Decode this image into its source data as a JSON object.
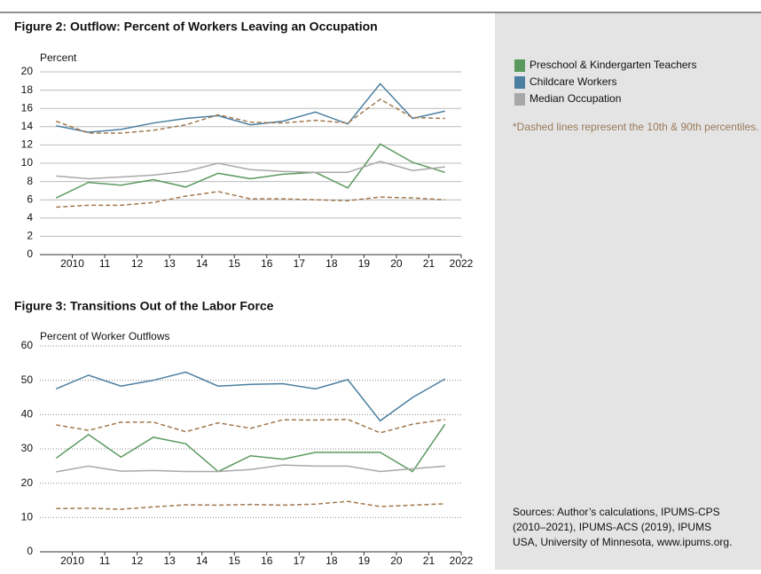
{
  "chart_data": [
    {
      "type": "line",
      "title": "Figure 2: Outflow: Percent of Workers Leaving an Occupation",
      "y_label": "Percent",
      "x": [
        2009.5,
        2010.5,
        2011.5,
        2012.5,
        2013.5,
        2014.5,
        2015.5,
        2016.5,
        2017.5,
        2018.5,
        2019.5,
        2020.5,
        2021.5
      ],
      "xlim": [
        2009,
        2022
      ],
      "xticks": [
        2010,
        {
          "value": 2011,
          "label": "11"
        },
        {
          "value": 2012,
          "label": "12"
        },
        {
          "value": 2013,
          "label": "13"
        },
        {
          "value": 2014,
          "label": "14"
        },
        {
          "value": 2015,
          "label": "15"
        },
        {
          "value": 2016,
          "label": "16"
        },
        {
          "value": 2017,
          "label": "17"
        },
        {
          "value": 2018,
          "label": "18"
        },
        {
          "value": 2019,
          "label": "19"
        },
        {
          "value": 2020,
          "label": "20"
        },
        {
          "value": 2021,
          "label": "21"
        },
        2022
      ],
      "ylim": [
        0,
        20
      ],
      "yticks": [
        0,
        2,
        4,
        6,
        8,
        10,
        12,
        14,
        16,
        18,
        20
      ],
      "grid": true,
      "series": [
        {
          "name": "Preschool & Kindergarten Teachers",
          "color": "#5b9a5e",
          "values": [
            6.2,
            7.9,
            7.6,
            8.2,
            7.4,
            8.9,
            8.3,
            8.8,
            9.0,
            7.3,
            12.1,
            10.1,
            9.0
          ]
        },
        {
          "name": "Childcare Workers",
          "color": "#4b7fa0",
          "values": [
            14.1,
            13.4,
            13.7,
            14.4,
            14.9,
            15.2,
            14.2,
            14.6,
            15.6,
            14.3,
            18.7,
            14.9,
            15.7
          ]
        },
        {
          "name": "Median Occupation",
          "color": "#a8a8a8",
          "values": [
            8.6,
            8.3,
            8.5,
            8.7,
            9.1,
            10.0,
            9.3,
            9.1,
            9.0,
            9.0,
            10.2,
            9.2,
            9.6
          ]
        },
        {
          "color": "#a0784f",
          "dashed": true,
          "values": [
            14.6,
            13.3,
            13.3,
            13.6,
            14.2,
            15.3,
            14.5,
            14.4,
            14.7,
            14.4,
            17.0,
            15.0,
            14.9
          ]
        },
        {
          "color": "#a0784f",
          "dashed": true,
          "values": [
            5.2,
            5.4,
            5.4,
            5.7,
            6.4,
            6.9,
            6.1,
            6.1,
            6.0,
            5.9,
            6.3,
            6.2,
            6.0
          ]
        }
      ]
    },
    {
      "type": "line",
      "title": "Figure 3: Transitions Out of the Labor Force",
      "y_label": "Percent of Worker Outflows",
      "x": [
        2009.5,
        2010.5,
        2011.5,
        2012.5,
        2013.5,
        2014.5,
        2015.5,
        2016.5,
        2017.5,
        2018.5,
        2019.5,
        2020.5,
        2021.5
      ],
      "xlim": [
        2009,
        2022
      ],
      "xticks": [
        2010,
        {
          "value": 2011,
          "label": "11"
        },
        {
          "value": 2012,
          "label": "12"
        },
        {
          "value": 2013,
          "label": "13"
        },
        {
          "value": 2014,
          "label": "14"
        },
        {
          "value": 2015,
          "label": "15"
        },
        {
          "value": 2016,
          "label": "16"
        },
        {
          "value": 2017,
          "label": "17"
        },
        {
          "value": 2018,
          "label": "18"
        },
        {
          "value": 2019,
          "label": "19"
        },
        {
          "value": 2020,
          "label": "20"
        },
        {
          "value": 2021,
          "label": "21"
        },
        2022
      ],
      "ylim": [
        0,
        60
      ],
      "yticks": [
        0,
        10,
        20,
        30,
        40,
        50,
        60
      ],
      "grid": true,
      "series": [
        {
          "color": "#5b9a5e",
          "values": [
            27.3,
            34.2,
            27.6,
            33.4,
            31.5,
            23.4,
            28.0,
            27.0,
            29.0,
            29.0,
            29.0,
            23.4,
            37.2
          ]
        },
        {
          "color": "#4b7fa0",
          "values": [
            47.5,
            51.5,
            48.3,
            50.0,
            52.4,
            48.3,
            48.8,
            49.0,
            47.5,
            50.2,
            38.2,
            45.0,
            50.4
          ]
        },
        {
          "color": "#a8a8a8",
          "values": [
            23.3,
            25.0,
            23.5,
            23.7,
            23.4,
            23.4,
            24.0,
            25.3,
            25.0,
            25.0,
            23.4,
            24.2,
            25.0
          ]
        },
        {
          "color": "#a0784f",
          "dashed": true,
          "values": [
            37.0,
            35.4,
            37.8,
            37.8,
            35.0,
            37.6,
            36.0,
            38.5,
            38.4,
            38.6,
            34.7,
            37.2,
            38.6
          ]
        },
        {
          "color": "#a0784f",
          "dashed": true,
          "values": [
            12.6,
            12.7,
            12.4,
            13.1,
            13.7,
            13.6,
            13.8,
            13.6,
            13.9,
            14.7,
            13.2,
            13.6,
            14.0
          ]
        }
      ]
    }
  ],
  "note": "*Dashed lines represent the 10th & 90th percentiles.",
  "sources": [
    "Sources: Author’s calculations, IPUMS-CPS",
    "(2010–2021), IPUMS-ACS (2019), IPUMS",
    "USA, University of Minnesota, www.ipums.org."
  ]
}
